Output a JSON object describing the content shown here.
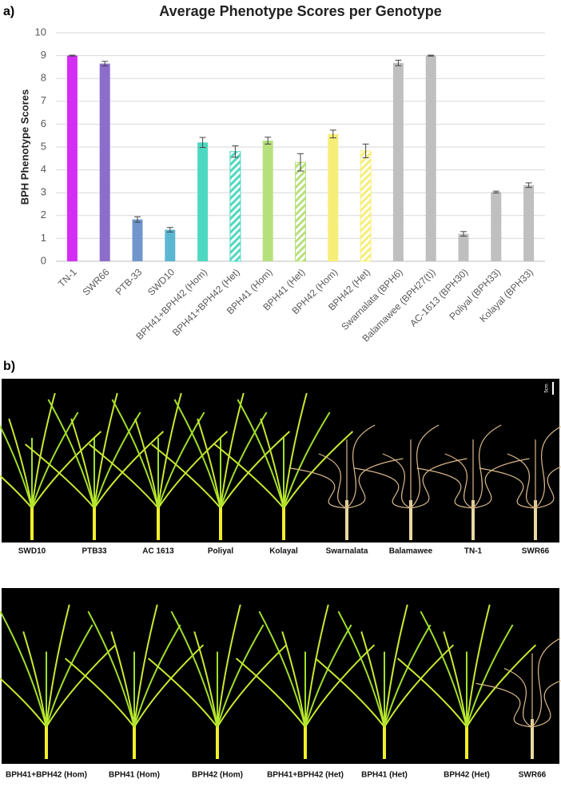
{
  "panel_labels": [
    "a)",
    "b)"
  ],
  "chart_data": {
    "type": "bar",
    "title": "Average Phenotype Scores per Genotype",
    "y_label": "BPH Phenotype Scores",
    "categories": [
      "TN-1",
      "SWR66",
      "PTB-33",
      "SWD10",
      "BPH41+BPH42 (Hom)",
      "BPH41+BPH42 (Het)",
      "BPH41 (Hom)",
      "BPH41 (Het)",
      "BPH42 (Hom)",
      "BPH42 (Het)",
      "Swarnalata (BPH6)",
      "Balamawee (BPH27(t))",
      "AC-1613 (BPH30)",
      "Poliyal (BPH33)",
      "Kolayal (BPH33)"
    ],
    "values": [
      9.0,
      8.65,
      1.83,
      1.38,
      5.2,
      4.8,
      5.28,
      4.33,
      5.57,
      4.83,
      8.68,
      9.0,
      1.2,
      3.03,
      3.33
    ],
    "errors": [
      0.02,
      0.1,
      0.12,
      0.1,
      0.22,
      0.25,
      0.15,
      0.38,
      0.17,
      0.3,
      0.12,
      0.02,
      0.1,
      0.04,
      0.1
    ],
    "colors": [
      "#d42ef5",
      "#8d6dcc",
      "#7096cc",
      "#5bb6d2",
      "#4fd8c1",
      "#4fd8c1",
      "#b6e07c",
      "#b6e07c",
      "#f7ee79",
      "#f7ee79",
      "#bfbfbf",
      "#bfbfbf",
      "#bfbfbf",
      "#bfbfbf",
      "#bfbfbf"
    ],
    "hatched": [
      false,
      false,
      false,
      false,
      false,
      true,
      false,
      true,
      false,
      true,
      false,
      false,
      false,
      false,
      false
    ],
    "ylim": [
      0,
      10
    ],
    "yticks": [
      0,
      1,
      2,
      3,
      4,
      5,
      6,
      7,
      8,
      9,
      10
    ],
    "grid": true
  },
  "photos": {
    "scale_label": "5cm",
    "rows": [
      {
        "labels": [
          "SWD10",
          "PTB33",
          "AC 1613",
          "Poliyal",
          "Kolayal",
          "Swarnalata",
          "Balamawee",
          "TN-1",
          "SWR66"
        ]
      },
      {
        "labels": [
          "BPH41+BPH42 (Hom)",
          "BPH41 (Hom)",
          "BPH42 (Hom)",
          "BPH41+BPH42 (Het)",
          "BPH41 (Het)",
          "BPH42 (Het)",
          "SWR66"
        ]
      }
    ]
  }
}
